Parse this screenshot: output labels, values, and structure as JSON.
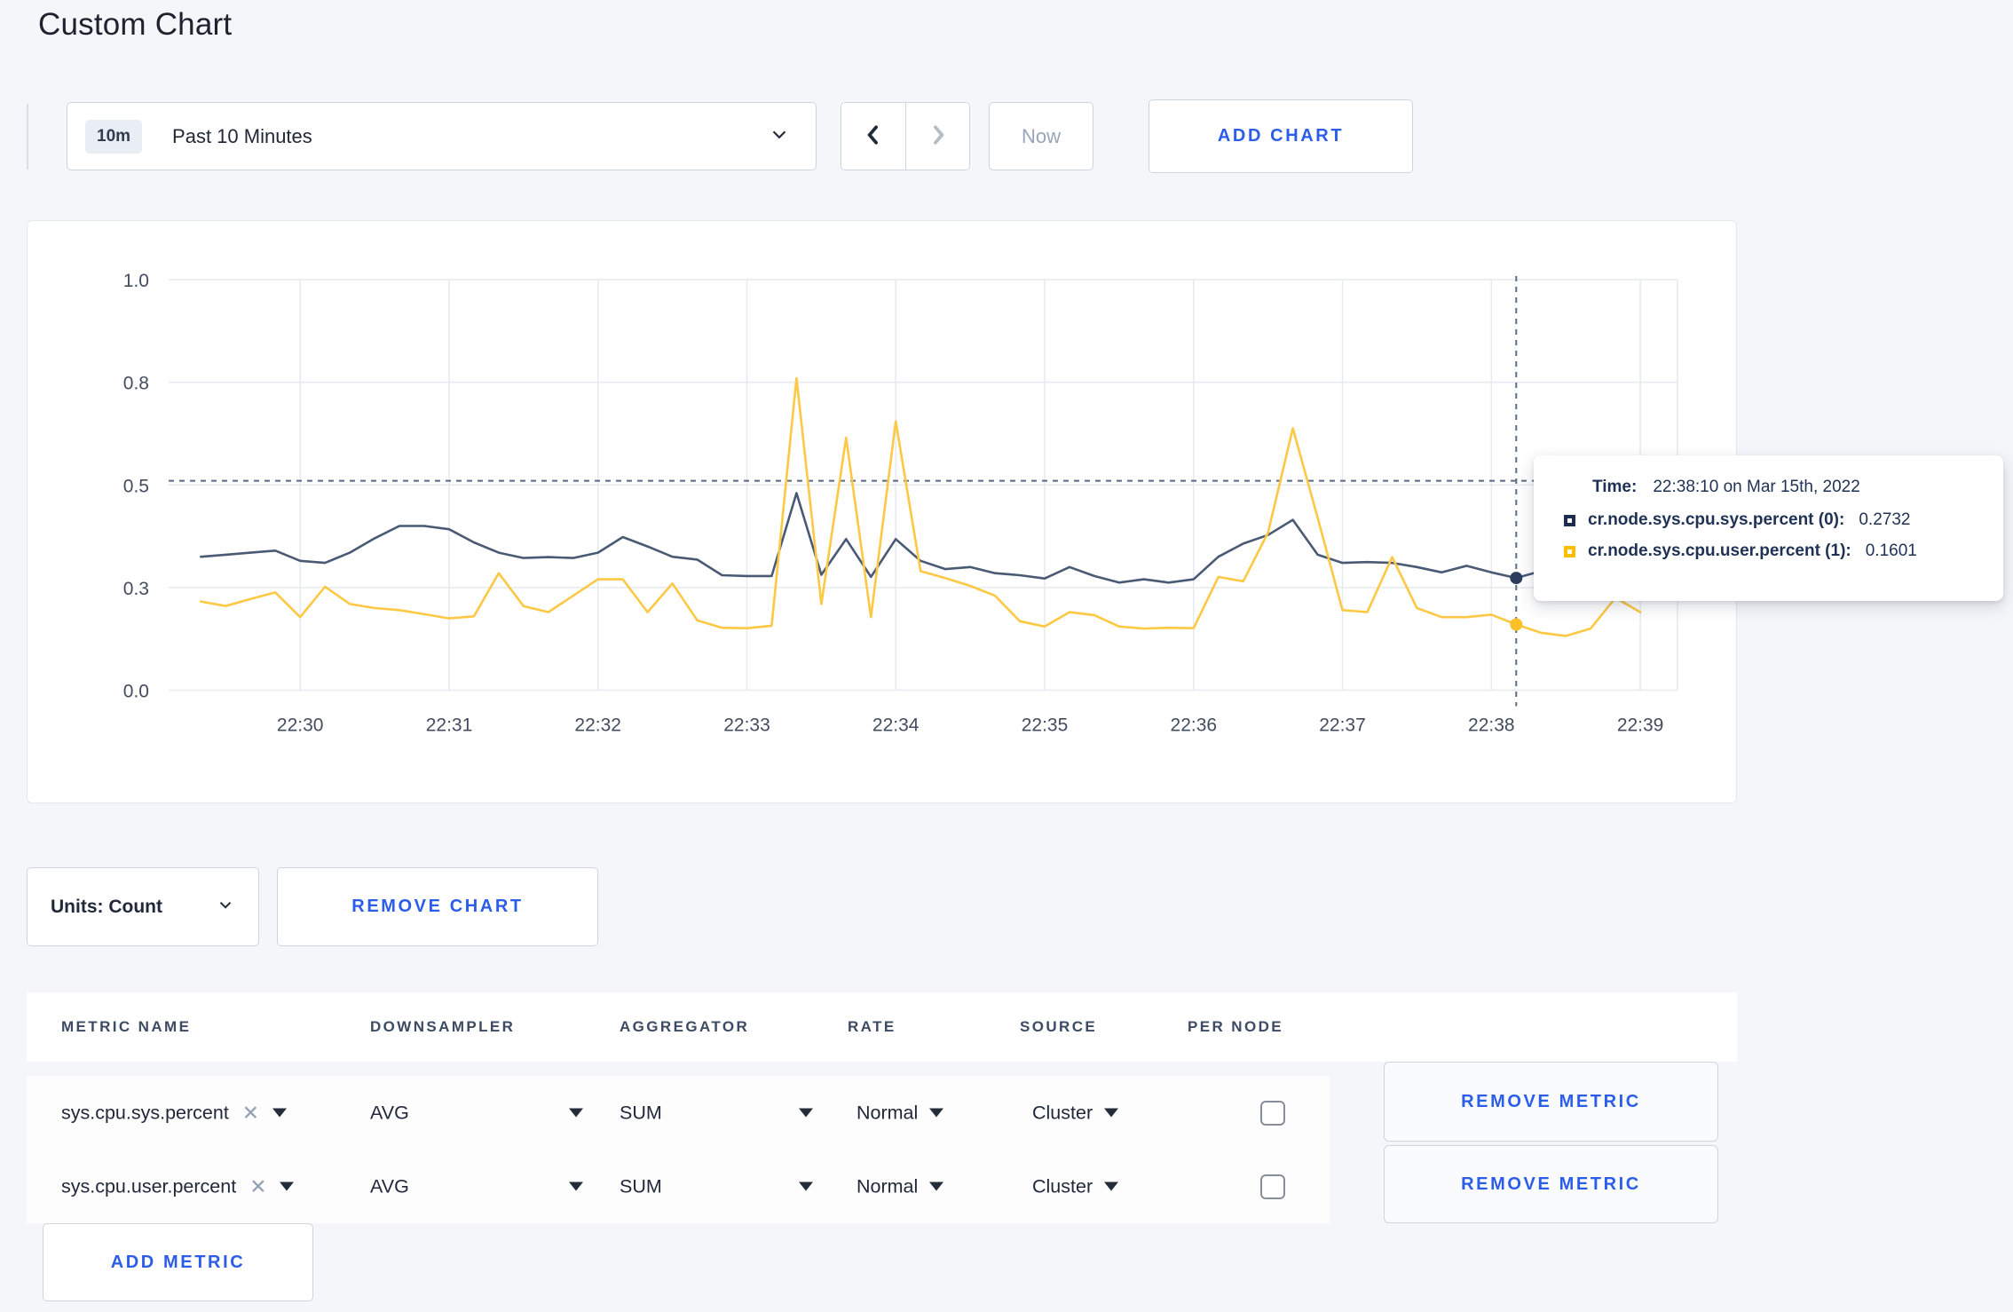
{
  "page": {
    "title": "Custom Chart"
  },
  "toolbar": {
    "range_badge": "10m",
    "range_label": "Past 10 Minutes",
    "now_label": "Now",
    "add_chart_label": "ADD CHART"
  },
  "chart_data": {
    "type": "line",
    "title": "",
    "xlabel": "",
    "ylabel": "",
    "ylim": [
      0,
      1
    ],
    "grid": true,
    "legend": "none",
    "x_start": "22:29:20",
    "x_step_seconds": 10,
    "x_axis_domain": [
      "22:29:07",
      "22:39:15"
    ],
    "x_ticks": [
      "22:30",
      "22:31",
      "22:32",
      "22:33",
      "22:34",
      "22:35",
      "22:36",
      "22:37",
      "22:38",
      "22:39"
    ],
    "y_ticks": [
      {
        "value": 0.0,
        "label": "0.0"
      },
      {
        "value": 0.25,
        "label": "0.3"
      },
      {
        "value": 0.5,
        "label": "0.5"
      },
      {
        "value": 0.75,
        "label": "0.8"
      },
      {
        "value": 1.0,
        "label": "1.0"
      }
    ],
    "series": [
      {
        "name": "cr.node.sys.cpu.sys.percent (0)",
        "color": "#4a5a75",
        "dot_color": "#2c3d5e",
        "values": [
          0.325,
          0.33,
          0.335,
          0.34,
          0.315,
          0.31,
          0.335,
          0.37,
          0.4,
          0.4,
          0.392,
          0.36,
          0.335,
          0.322,
          0.324,
          0.322,
          0.335,
          0.373,
          0.35,
          0.325,
          0.318,
          0.28,
          0.278,
          0.278,
          0.48,
          0.281,
          0.368,
          0.276,
          0.368,
          0.315,
          0.295,
          0.3,
          0.285,
          0.28,
          0.272,
          0.3,
          0.278,
          0.262,
          0.27,
          0.262,
          0.27,
          0.325,
          0.357,
          0.378,
          0.415,
          0.33,
          0.31,
          0.312,
          0.31,
          0.3,
          0.287,
          0.303,
          0.287,
          0.2732,
          0.29,
          0.3,
          0.292,
          0.285,
          0.3
        ]
      },
      {
        "name": "cr.node.sys.cpu.user.percent (1)",
        "color": "#fdc843",
        "dot_color": "#fdc026",
        "values": [
          0.216,
          0.205,
          0.222,
          0.238,
          0.178,
          0.252,
          0.21,
          0.2,
          0.195,
          0.185,
          0.175,
          0.18,
          0.285,
          0.205,
          0.19,
          0.23,
          0.27,
          0.27,
          0.19,
          0.26,
          0.17,
          0.152,
          0.151,
          0.157,
          0.76,
          0.21,
          0.615,
          0.178,
          0.655,
          0.29,
          0.273,
          0.254,
          0.23,
          0.168,
          0.155,
          0.19,
          0.183,
          0.155,
          0.15,
          0.152,
          0.151,
          0.276,
          0.265,
          0.384,
          0.638,
          0.42,
          0.195,
          0.19,
          0.324,
          0.2,
          0.178,
          0.178,
          0.184,
          0.1601,
          0.14,
          0.132,
          0.15,
          0.225,
          0.19
        ]
      }
    ],
    "crosshair": {
      "time": "22:38:10",
      "h_value": 0.51,
      "highlight_index": 53
    }
  },
  "tooltip": {
    "time_label": "Time:",
    "time_value": "22:38:10 on Mar 15th, 2022",
    "rows": [
      {
        "name": "cr.node.sys.cpu.sys.percent (0):",
        "value": "0.2732",
        "swatch_color": "#1d2d50"
      },
      {
        "name": "cr.node.sys.cpu.user.percent (1):",
        "value": "0.1601",
        "swatch_color": "#ffbe00"
      }
    ]
  },
  "chart_controls": {
    "units_label": "Units: Count",
    "remove_chart_label": "REMOVE CHART"
  },
  "metrics_table": {
    "headers": [
      "METRIC NAME",
      "DOWNSAMPLER",
      "AGGREGATOR",
      "RATE",
      "SOURCE",
      "PER NODE"
    ],
    "rows": [
      {
        "metric": "sys.cpu.sys.percent",
        "downsampler": "AVG",
        "aggregator": "SUM",
        "rate": "Normal",
        "source": "Cluster",
        "per_node_checked": false,
        "remove_label": "REMOVE METRIC"
      },
      {
        "metric": "sys.cpu.user.percent",
        "downsampler": "AVG",
        "aggregator": "SUM",
        "rate": "Normal",
        "source": "Cluster",
        "per_node_checked": false,
        "remove_label": "REMOVE METRIC"
      }
    ],
    "add_metric_label": "ADD METRIC"
  }
}
